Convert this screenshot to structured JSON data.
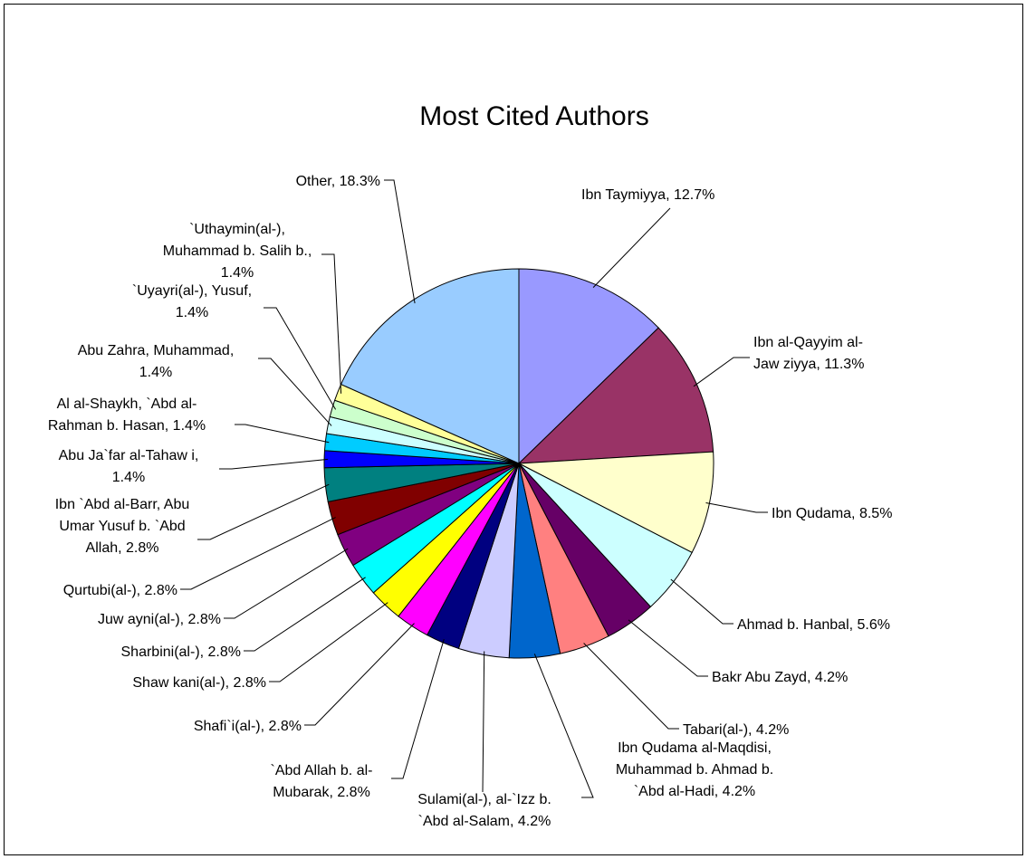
{
  "chart_data": {
    "type": "pie",
    "title": "Most Cited Authors",
    "slices": [
      {
        "label": "Ibn Taymiyya, 12.7%",
        "value": 12.7,
        "color": "#9999ff"
      },
      {
        "label": "Ibn al-Qayyim al-Jaw ziyya, 11.3%",
        "value": 11.3,
        "color": "#993366"
      },
      {
        "label": "Ibn Qudama, 8.5%",
        "value": 8.5,
        "color": "#ffffcc"
      },
      {
        "label": "Ahmad b. Hanbal, 5.6%",
        "value": 5.6,
        "color": "#ccffff"
      },
      {
        "label": "Bakr Abu Zayd, 4.2%",
        "value": 4.2,
        "color": "#660066"
      },
      {
        "label": "Tabari(al-), 4.2%",
        "value": 4.2,
        "color": "#ff8080"
      },
      {
        "label": "Ibn Qudama al-Maqdisi, Muhammad b. Ahmad b. `Abd al-Hadi, 4.2%",
        "value": 4.2,
        "color": "#0066cc"
      },
      {
        "label": "Sulami(al-), al-`Izz b. `Abd al-Salam, 4.2%",
        "value": 4.2,
        "color": "#ccccff"
      },
      {
        "label": "`Abd Allah b. al-Mubarak, 2.8%",
        "value": 2.8,
        "color": "#000080"
      },
      {
        "label": "Shafi`i(al-), 2.8%",
        "value": 2.8,
        "color": "#ff00ff"
      },
      {
        "label": "Shaw kani(al-), 2.8%",
        "value": 2.8,
        "color": "#ffff00"
      },
      {
        "label": "Sharbini(al-), 2.8%",
        "value": 2.8,
        "color": "#00ffff"
      },
      {
        "label": "Juw ayni(al-), 2.8%",
        "value": 2.8,
        "color": "#800080"
      },
      {
        "label": "Qurtubi(al-), 2.8%",
        "value": 2.8,
        "color": "#800000"
      },
      {
        "label": "Ibn `Abd al-Barr, Abu Umar Yusuf b. `Abd Allah, 2.8%",
        "value": 2.8,
        "color": "#008080"
      },
      {
        "label": "Abu Ja`far al-Tahaw i, 1.4%",
        "value": 1.4,
        "color": "#0000ff"
      },
      {
        "label": "Al al-Shaykh, `Abd al-Rahman b. Hasan, 1.4%",
        "value": 1.4,
        "color": "#00ccff"
      },
      {
        "label": "Abu Zahra, Muhammad, 1.4%",
        "value": 1.4,
        "color": "#ccffff"
      },
      {
        "label": "`Uyayri(al-), Yusuf, 1.4%",
        "value": 1.4,
        "color": "#ccffcc"
      },
      {
        "label": "`Uthaymin(al-), Muhammad b. Salih b., 1.4%",
        "value": 1.4,
        "color": "#ffff99"
      },
      {
        "label": "Other, 18.3%",
        "value": 18.3,
        "color": "#99ccff"
      }
    ],
    "legend": "none"
  }
}
